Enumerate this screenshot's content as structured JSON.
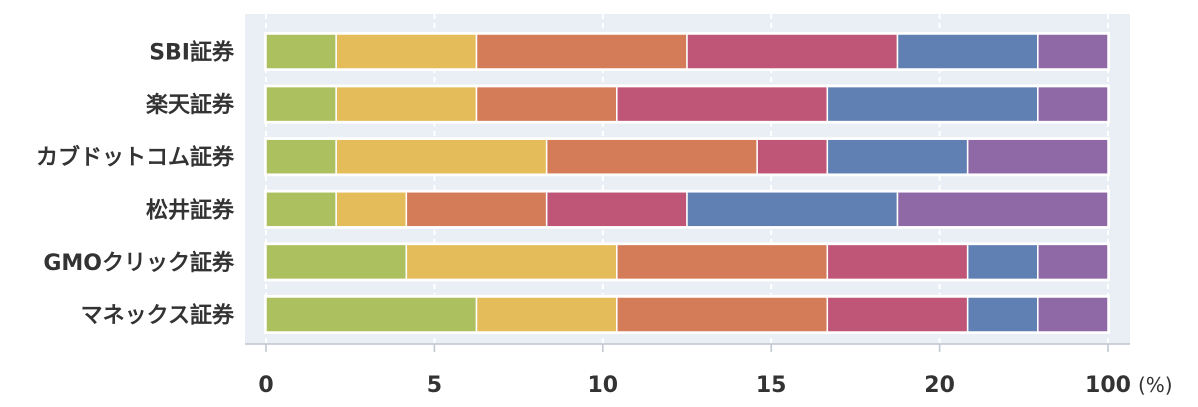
{
  "chart_data": {
    "type": "bar",
    "orientation": "horizontal",
    "stacked": true,
    "categories": [
      "SBI証券",
      "楽天証券",
      "カブドットコム証券",
      "松井証券",
      "GMOクリック証券",
      "マネックス証券"
    ],
    "x_tick_labels": [
      "0",
      "5",
      "10",
      "15",
      "20",
      "100"
    ],
    "x_unit": "(%)",
    "grid": true,
    "series": [
      {
        "color": "#acc060",
        "values": [
          2,
          2,
          2,
          2,
          4,
          6
        ]
      },
      {
        "color": "#e4bc5a",
        "values": [
          4,
          4,
          6,
          2,
          6,
          4
        ]
      },
      {
        "color": "#d47b58",
        "values": [
          6,
          4,
          6,
          4,
          6,
          6
        ]
      },
      {
        "color": "#bf5677",
        "values": [
          6,
          6,
          2,
          4,
          4,
          4
        ]
      },
      {
        "color": "#6080b4",
        "values": [
          4,
          6,
          4,
          6,
          2,
          2
        ]
      },
      {
        "color": "#8f68a6",
        "values": [
          2,
          2,
          4,
          6,
          2,
          2
        ]
      }
    ]
  }
}
